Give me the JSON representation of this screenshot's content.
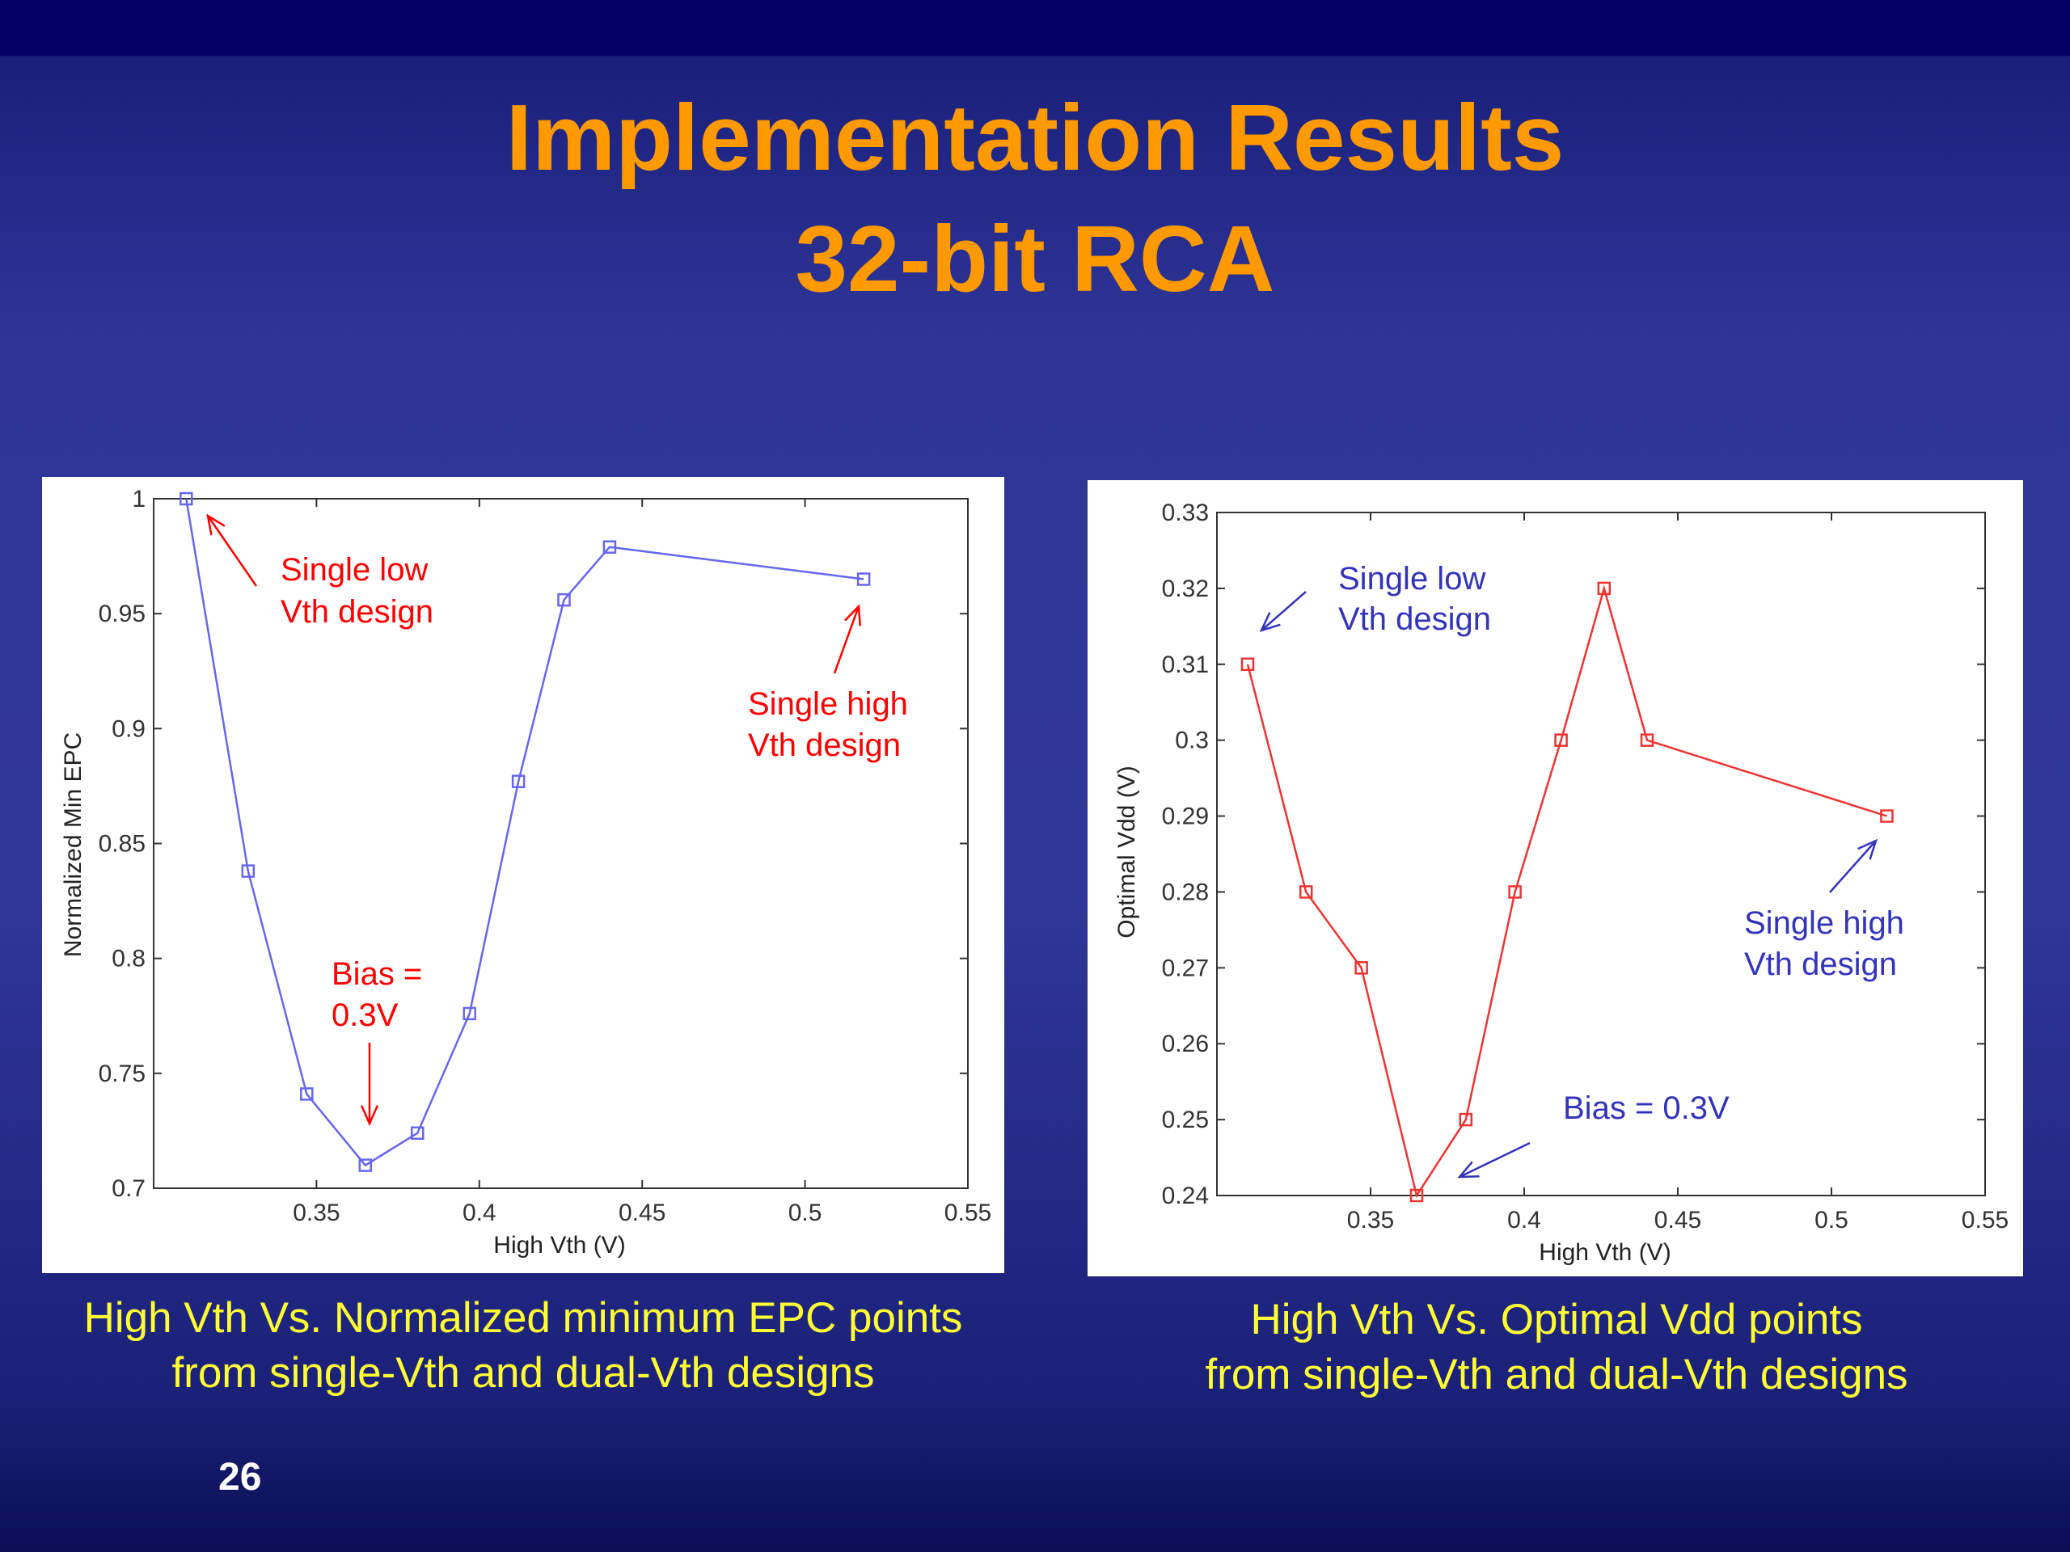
{
  "slide": {
    "title_line1": "Implementation Results",
    "title_line2": "32-bit RCA",
    "page_number": "26",
    "caption_left_line1": "High Vth Vs. Normalized minimum EPC points",
    "caption_left_line2": "from single-Vth and dual-Vth designs",
    "caption_right_line1": "High Vth Vs. Optimal Vdd points",
    "caption_right_line2": "from single-Vth and dual-Vth designs"
  },
  "chart_data": [
    {
      "type": "line",
      "xlabel": "High Vth (V)",
      "ylabel": "Normalized Min EPC",
      "xlim": [
        0.3,
        0.55
      ],
      "ylim": [
        0.7,
        1.0
      ],
      "xticks": [
        0.35,
        0.4,
        0.45,
        0.5,
        0.55
      ],
      "xtick_labels": [
        "0.35",
        "0.4",
        "0.45",
        "0.5",
        "0.55"
      ],
      "yticks": [
        0.7,
        0.75,
        0.8,
        0.85,
        0.9,
        0.95,
        1.0
      ],
      "ytick_labels": [
        "0.7",
        "0.75",
        "0.8",
        "0.85",
        "0.9",
        "0.95",
        "1"
      ],
      "grid": false,
      "color": "#6666ee",
      "annotation_color": "#ff0000",
      "marker": "square",
      "series": [
        {
          "x": [
            0.31,
            0.329,
            0.347,
            0.365,
            0.381,
            0.397,
            0.412,
            0.426,
            0.44,
            0.518
          ],
          "y": [
            1.0,
            0.838,
            0.741,
            0.71,
            0.724,
            0.776,
            0.877,
            0.956,
            0.979,
            0.965
          ]
        }
      ],
      "annotations": [
        {
          "text": [
            "Single low",
            "Vth design"
          ]
        },
        {
          "text": [
            "Single high",
            "Vth design"
          ]
        },
        {
          "text": [
            "Bias =",
            "0.3V"
          ]
        }
      ]
    },
    {
      "type": "line",
      "xlabel": "High Vth (V)",
      "ylabel": "Optimal Vdd (V)",
      "xlim": [
        0.3,
        0.55
      ],
      "ylim": [
        0.24,
        0.33
      ],
      "xticks": [
        0.35,
        0.4,
        0.45,
        0.5,
        0.55
      ],
      "xtick_labels": [
        "0.35",
        "0.4",
        "0.45",
        "0.5",
        "0.55"
      ],
      "yticks": [
        0.24,
        0.25,
        0.26,
        0.27,
        0.28,
        0.29,
        0.3,
        0.31,
        0.32,
        0.33
      ],
      "ytick_labels": [
        "0.24",
        "0.25",
        "0.26",
        "0.27",
        "0.28",
        "0.29",
        "0.3",
        "0.31",
        "0.32",
        "0.33"
      ],
      "grid": false,
      "color": "#ee3333",
      "annotation_color": "#3333bb",
      "marker": "square",
      "series": [
        {
          "x": [
            0.31,
            0.329,
            0.347,
            0.365,
            0.381,
            0.397,
            0.412,
            0.426,
            0.44,
            0.518
          ],
          "y": [
            0.31,
            0.28,
            0.27,
            0.24,
            0.25,
            0.28,
            0.3,
            0.32,
            0.3,
            0.29
          ]
        }
      ],
      "annotations": [
        {
          "text": [
            "Single low",
            "Vth design"
          ]
        },
        {
          "text": [
            "Single high",
            "Vth design"
          ]
        },
        {
          "text": [
            "Bias = 0.3V"
          ]
        }
      ]
    }
  ]
}
